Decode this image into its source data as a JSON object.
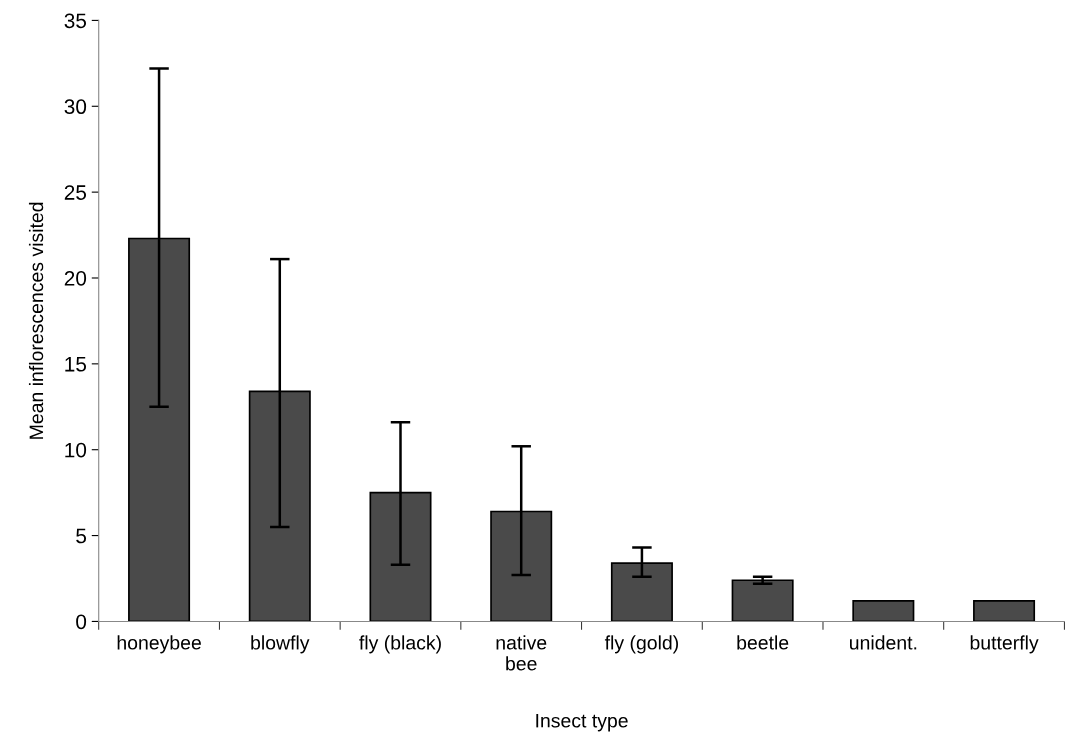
{
  "chart_data": {
    "type": "bar",
    "xlabel": "Insect type",
    "ylabel": "Mean inflorescences visited",
    "categories": [
      "honeybee",
      "blowfly",
      "fly (black)",
      "native\nbee",
      "fly (gold)",
      "beetle",
      "unident.",
      "butterfly"
    ],
    "values": [
      22.3,
      13.4,
      7.5,
      6.4,
      3.4,
      2.4,
      1.2,
      1.2
    ],
    "errors": [
      [
        12.5,
        32.2
      ],
      [
        5.5,
        21.1
      ],
      [
        3.3,
        11.6
      ],
      [
        2.7,
        10.2
      ],
      [
        2.6,
        4.3
      ],
      [
        2.2,
        2.6
      ],
      null,
      null
    ],
    "color": "#4a4a4a",
    "ylim": [
      0,
      35
    ],
    "yticks": [
      0,
      5,
      10,
      15,
      20,
      25,
      30,
      35
    ],
    "grid": false
  }
}
